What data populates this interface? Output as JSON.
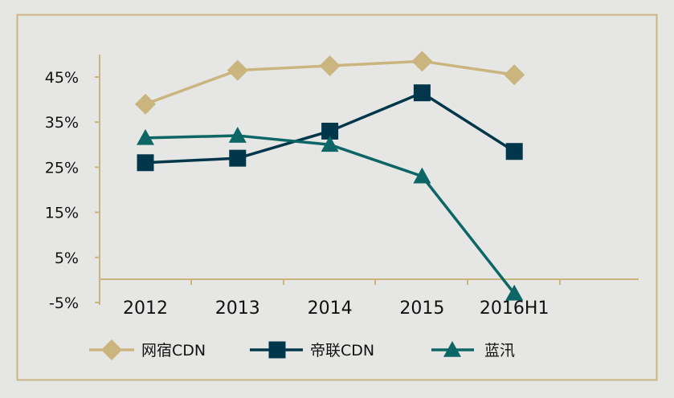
{
  "chart_data": {
    "type": "line",
    "categories": [
      "2012",
      "2013",
      "2014",
      "2015",
      "2016H1"
    ],
    "y_ticks": [
      "-5%",
      "5%",
      "15%",
      "25%",
      "35%",
      "45%"
    ],
    "ylim": [
      -5,
      50
    ],
    "grid": false,
    "legend_position": "bottom",
    "series": [
      {
        "name": "网宿CDN",
        "values": [
          39,
          46.5,
          47.5,
          48.5,
          45.5
        ],
        "color": "#cbb57e",
        "marker": "diamond"
      },
      {
        "name": "帝联CDN",
        "values": [
          26,
          27,
          33,
          41.5,
          28.5
        ],
        "color": "#02364a",
        "marker": "square"
      },
      {
        "name": "蓝汛",
        "values": [
          31.5,
          32,
          30,
          23,
          -3
        ],
        "color": "#0c6665",
        "marker": "triangle"
      }
    ],
    "colors": {
      "axis": "#cbb57e",
      "frame": "#cbb57e",
      "background": "#e6e7e5"
    }
  }
}
